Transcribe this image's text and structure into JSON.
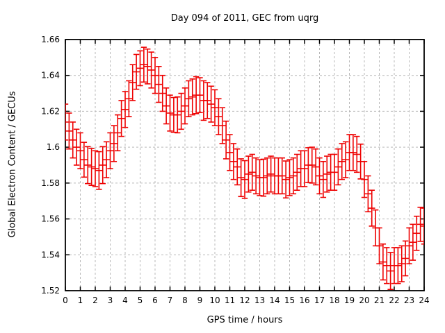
{
  "colors": {
    "data": "#ee0000",
    "grid": "#b8b8b8",
    "axis": "#000000",
    "text": "#000000",
    "background": "#ffffff"
  },
  "chart_data": {
    "type": "scatter",
    "style": "points with y-error-bars (gnuplot yerrorbars)",
    "title": "Day 094 of 2011, GEC from uqrg",
    "xlabel": "GPS time / hours",
    "ylabel": "Global Electron Content / GECUs",
    "xlim": [
      0,
      24
    ],
    "ylim": [
      1.52,
      1.66
    ],
    "grid": true,
    "legend_position": "none",
    "xtick_values": [
      0,
      1,
      2,
      3,
      4,
      5,
      6,
      7,
      8,
      9,
      10,
      11,
      12,
      13,
      14,
      15,
      16,
      17,
      18,
      19,
      20,
      21,
      22,
      23,
      24
    ],
    "xtick_labels": [
      "0",
      "1",
      "2",
      "3",
      "4",
      "5",
      "6",
      "7",
      "8",
      "9",
      "10",
      "11",
      "12",
      "13",
      "14",
      "15",
      "16",
      "17",
      "18",
      "19",
      "20",
      "21",
      "22",
      "23",
      "24"
    ],
    "ytick_values": [
      1.52,
      1.54,
      1.56,
      1.58,
      1.6,
      1.62,
      1.64,
      1.66
    ],
    "ytick_labels": [
      "1.52",
      "1.54",
      "1.56",
      "1.58",
      "1.6",
      "1.62",
      "1.64",
      "1.66"
    ],
    "series": [
      {
        "name": "GEC from uqrg",
        "color": "#ee0000",
        "x": [
          0,
          0.25,
          0.5,
          0.75,
          1,
          1.25,
          1.5,
          1.75,
          2,
          2.25,
          2.5,
          2.75,
          3,
          3.25,
          3.5,
          3.75,
          4,
          4.25,
          4.5,
          4.75,
          5,
          5.25,
          5.5,
          5.75,
          6,
          6.25,
          6.5,
          6.75,
          7,
          7.25,
          7.5,
          7.75,
          8,
          8.25,
          8.5,
          8.75,
          9,
          9.25,
          9.5,
          9.75,
          10,
          10.25,
          10.5,
          10.75,
          11,
          11.25,
          11.5,
          11.75,
          12,
          12.25,
          12.5,
          12.75,
          13,
          13.25,
          13.5,
          13.75,
          14,
          14.25,
          14.5,
          14.75,
          15,
          15.25,
          15.5,
          15.75,
          16,
          16.25,
          16.5,
          16.75,
          17,
          17.25,
          17.5,
          17.75,
          18,
          18.25,
          18.5,
          18.75,
          19,
          19.25,
          19.5,
          19.75,
          20,
          20.25,
          20.5,
          20.75,
          21,
          21.25,
          21.5,
          21.75,
          22,
          22.25,
          22.5,
          22.75,
          23,
          23.25,
          23.5,
          23.75,
          24
        ],
        "y": [
          1.614,
          1.609,
          1.604,
          1.6,
          1.598,
          1.593,
          1.59,
          1.589,
          1.588,
          1.587,
          1.59,
          1.593,
          1.598,
          1.602,
          1.608,
          1.616,
          1.621,
          1.627,
          1.636,
          1.642,
          1.644,
          1.646,
          1.645,
          1.643,
          1.64,
          1.635,
          1.63,
          1.623,
          1.619,
          1.618,
          1.618,
          1.62,
          1.623,
          1.627,
          1.628,
          1.629,
          1.629,
          1.626,
          1.626,
          1.624,
          1.622,
          1.617,
          1.612,
          1.604,
          1.597,
          1.592,
          1.589,
          1.583,
          1.582,
          1.585,
          1.586,
          1.584,
          1.583,
          1.583,
          1.584,
          1.585,
          1.584,
          1.584,
          1.584,
          1.582,
          1.583,
          1.584,
          1.586,
          1.588,
          1.588,
          1.59,
          1.59,
          1.589,
          1.584,
          1.582,
          1.585,
          1.586,
          1.586,
          1.589,
          1.592,
          1.593,
          1.597,
          1.597,
          1.596,
          1.592,
          1.582,
          1.574,
          1.566,
          1.555,
          1.545,
          1.536,
          1.534,
          1.531,
          1.534,
          1.534,
          1.535,
          1.538,
          1.545,
          1.547,
          1.552,
          1.557,
          1.556
        ],
        "yerr": [
          0.01,
          0.01,
          0.01,
          0.01,
          0.01,
          0.0097,
          0.0103,
          0.0103,
          0.01,
          0.0105,
          0.0103,
          0.01,
          0.01,
          0.01,
          0.01,
          0.01,
          0.01,
          0.01,
          0.01,
          0.0097,
          0.0097,
          0.0097,
          0.0097,
          0.01,
          0.01,
          0.01,
          0.01,
          0.01,
          0.01,
          0.0097,
          0.01,
          0.01,
          0.01,
          0.01,
          0.01,
          0.0103,
          0.0097,
          0.011,
          0.01,
          0.01,
          0.01,
          0.01,
          0.01,
          0.0105,
          0.01,
          0.01,
          0.01,
          0.0105,
          0.0105,
          0.01,
          0.01,
          0.01,
          0.01,
          0.0103,
          0.01,
          0.01,
          0.01,
          0.01,
          0.01,
          0.0103,
          0.01,
          0.01,
          0.01,
          0.01,
          0.01,
          0.0097,
          0.01,
          0.01,
          0.01,
          0.01,
          0.01,
          0.01,
          0.01,
          0.01,
          0.01,
          0.01,
          0.01,
          0.01,
          0.01,
          0.0097,
          0.01,
          0.01,
          0.01,
          0.01,
          0.01,
          0.01,
          0.01,
          0.0103,
          0.01,
          0.01,
          0.01,
          0.0097,
          0.01,
          0.01,
          0.0095,
          0.0095,
          0.01
        ]
      }
    ]
  }
}
